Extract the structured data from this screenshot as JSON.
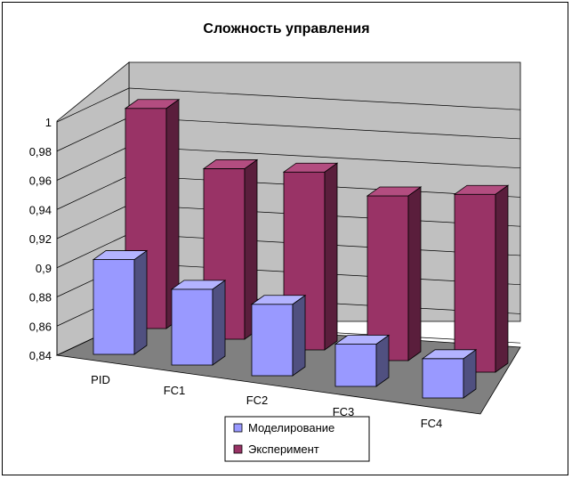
{
  "chart_data": {
    "type": "bar",
    "title": "Сложность управления",
    "xlabel": "",
    "ylabel": "",
    "categories": [
      "PID",
      "FC1",
      "FC2",
      "FC3",
      "FC4"
    ],
    "series": [
      {
        "name": "Моделирование",
        "values": [
          0.905,
          0.892,
          0.889,
          0.869,
          0.867
        ],
        "color": "#9999ff",
        "side_color": "#505080",
        "top_color": "#b3b3ff"
      },
      {
        "name": "Эксперимент",
        "values": [
          0.991,
          0.957,
          0.962,
          0.953,
          0.962
        ],
        "color": "#993366",
        "side_color": "#5a1e3c",
        "top_color": "#b34d80"
      }
    ],
    "yticks": [
      "0,84",
      "0,86",
      "0,88",
      "0,9",
      "0,92",
      "0,94",
      "0,96",
      "0,98",
      "1"
    ],
    "ylim": [
      0.84,
      1.0
    ],
    "grid": true,
    "legend_position": "bottom-center",
    "colors": {
      "wall": "#c0c0c0",
      "floor": "#808080",
      "grid": "#000000"
    }
  }
}
